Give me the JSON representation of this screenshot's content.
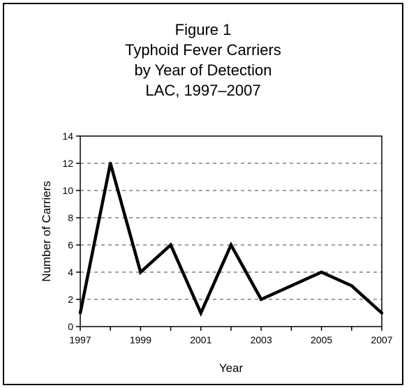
{
  "chart_data": {
    "type": "line",
    "title_lines": [
      "Figure 1",
      "Typhoid Fever Carriers",
      "by Year of Detection",
      "LAC, 1997–2007"
    ],
    "xlabel": "Year",
    "ylabel": "Number of Carriers",
    "x": [
      1997,
      1998,
      1999,
      2000,
      2001,
      2002,
      2003,
      2004,
      2005,
      2006,
      2007
    ],
    "values": [
      1,
      12,
      4,
      6,
      1,
      6,
      2,
      3,
      4,
      3,
      1
    ],
    "xlim": [
      1997,
      2007
    ],
    "ylim": [
      0,
      14
    ],
    "x_ticks": [
      1997,
      1999,
      2001,
      2003,
      2005,
      2007
    ],
    "y_ticks": [
      0,
      2,
      4,
      6,
      8,
      10,
      12,
      14
    ],
    "grid": "horizontal dashed",
    "line_color": "#000000",
    "grid_color": "#808080"
  }
}
